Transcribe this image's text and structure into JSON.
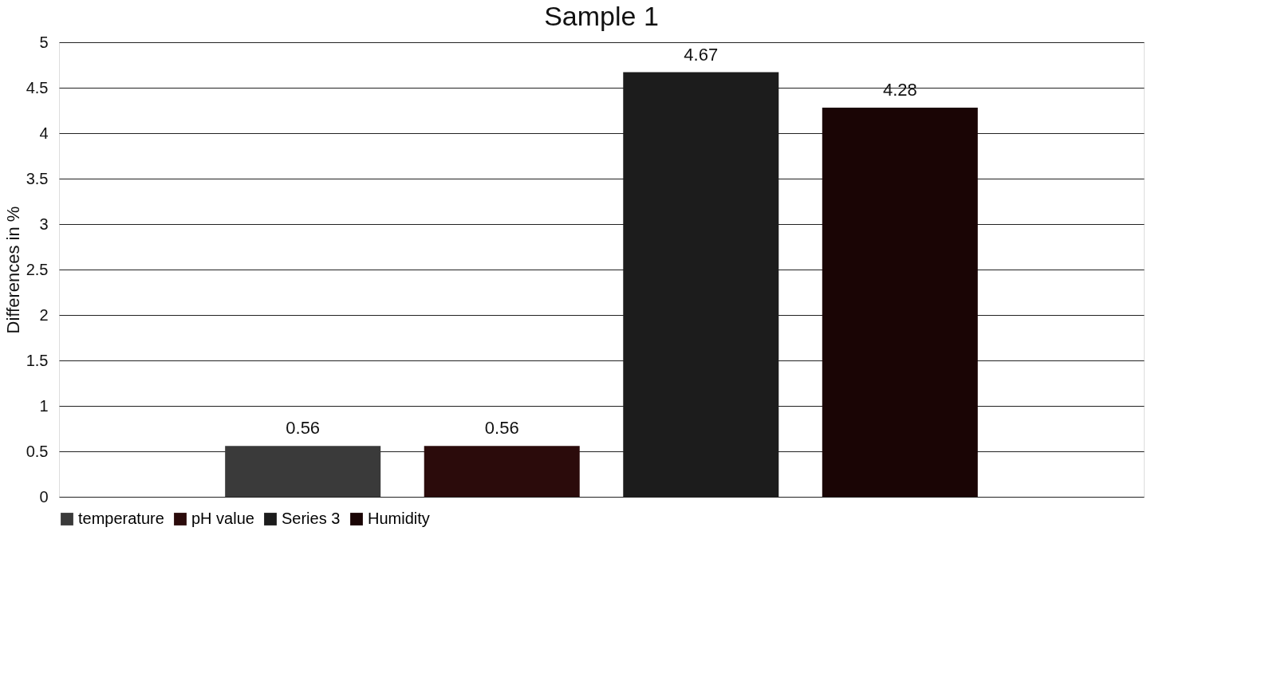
{
  "chart_data": {
    "type": "bar",
    "title": "Sample 1",
    "ylabel": "Differences in %",
    "categories": [
      null
    ],
    "series": [
      {
        "name": "temperature",
        "color": "#3a3a3a",
        "values": [
          0.56
        ]
      },
      {
        "name": "pH value",
        "color": "#2b0b0b",
        "values": [
          0.56
        ]
      },
      {
        "name": "Series 3",
        "color": "#1c1c1c",
        "values": [
          4.67
        ]
      },
      {
        "name": "Humidity",
        "color": "#1a0505",
        "values": [
          4.28
        ]
      }
    ],
    "ylim": [
      0,
      5
    ],
    "yticks": [
      0,
      0.5,
      1,
      1.5,
      2,
      2.5,
      3,
      3.5,
      4,
      4.5,
      5
    ],
    "grid": "y",
    "legend": "bottom",
    "data_labels": true
  }
}
